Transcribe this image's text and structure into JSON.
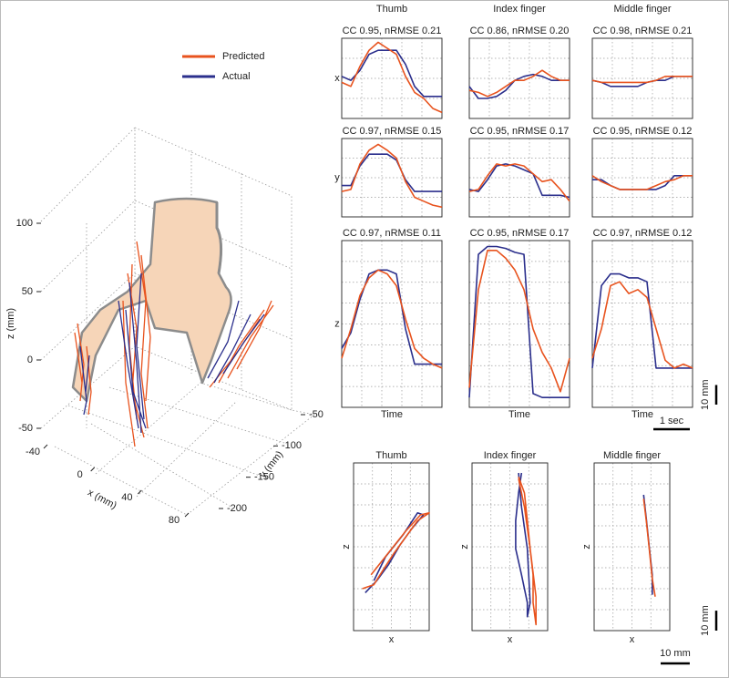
{
  "legend": {
    "items": [
      {
        "name": "Predicted",
        "color": "#e8531e"
      },
      {
        "name": "Actual",
        "color": "#2b2f8c"
      }
    ]
  },
  "plot3d": {
    "xlabel": "x (mm)",
    "ylabel": "y (mm)",
    "zlabel": "z (mm)",
    "xlim": [
      -40,
      80
    ],
    "xticks": [
      -40,
      0,
      40,
      80
    ],
    "ylim": [
      -50,
      -200
    ],
    "yticks": [
      -50,
      -100,
      -150,
      -200
    ],
    "zlim": [
      -50,
      100
    ],
    "zticks": [
      100,
      50,
      0,
      -50
    ]
  },
  "time_panels": {
    "xlabel": "Time",
    "time": [
      0,
      0.25,
      0.5,
      0.75,
      1,
      1.25,
      1.5,
      1.75,
      2,
      2.25,
      2.5,
      2.75
    ],
    "xlim": [
      0,
      2.75
    ],
    "columns": [
      "Thumb",
      "Index finger",
      "Middle finger"
    ],
    "rows": [
      {
        "label": "x",
        "ylim": [
          0,
          40
        ],
        "panels": [
          {
            "stats": "CC 0.95, nRMSE 0.21",
            "predicted": [
              18,
              16,
              26,
              34,
              38,
              35,
              32,
              21,
              13,
              10,
              5,
              3
            ],
            "actual": [
              21,
              19,
              24,
              32,
              34,
              34,
              34,
              27,
              16,
              11,
              11,
              11
            ]
          },
          {
            "stats": "CC 0.86, nRMSE 0.20",
            "predicted": [
              14,
              13,
              11,
              13,
              16,
              19,
              19,
              21,
              24,
              21,
              19,
              19
            ],
            "actual": [
              16,
              10,
              10,
              11,
              14,
              19,
              21,
              22,
              21,
              19,
              19,
              19
            ]
          },
          {
            "stats": "CC 0.98, nRMSE 0.21",
            "predicted": [
              19,
              18,
              18,
              18,
              18,
              18,
              18,
              19,
              21,
              21,
              21,
              21
            ],
            "actual": [
              19,
              18,
              16,
              16,
              16,
              16,
              18,
              19,
              19,
              21,
              21,
              21
            ]
          }
        ]
      },
      {
        "label": "y",
        "ylim": [
          0,
          40
        ],
        "panels": [
          {
            "stats": "CC 0.97, nRMSE 0.15",
            "predicted": [
              13,
              14,
              27,
              34,
              37,
              34,
              30,
              18,
              10,
              8,
              6,
              5
            ],
            "actual": [
              16,
              16,
              26,
              32,
              32,
              32,
              29,
              19,
              13,
              13,
              13,
              13
            ]
          },
          {
            "stats": "CC 0.95, nRMSE 0.17",
            "predicted": [
              13,
              14,
              21,
              27,
              26,
              27,
              26,
              22,
              18,
              19,
              14,
              8
            ],
            "actual": [
              14,
              13,
              19,
              26,
              27,
              26,
              24,
              22,
              11,
              11,
              11,
              10
            ]
          },
          {
            "stats": "CC 0.95, nRMSE 0.12",
            "predicted": [
              21,
              18,
              16,
              14,
              14,
              14,
              14,
              16,
              18,
              19,
              21,
              21
            ],
            "actual": [
              19,
              19,
              16,
              14,
              14,
              14,
              14,
              14,
              16,
              21,
              21,
              21
            ]
          }
        ]
      },
      {
        "label": "z",
        "ylim": [
          0,
          85
        ],
        "panels": [
          {
            "stats": "CC 0.97, nRMSE 0.11",
            "predicted": [
              25,
              40,
              57,
              66,
              70,
              68,
              62,
              45,
              30,
              25,
              22,
              20
            ],
            "actual": [
              30,
              38,
              55,
              68,
              70,
              70,
              68,
              40,
              22,
              22,
              22,
              22
            ]
          },
          {
            "stats": "CC 0.95, nRMSE 0.17",
            "predicted": [
              10,
              60,
              80,
              80,
              76,
              70,
              60,
              40,
              28,
              20,
              8,
              25
            ],
            "actual": [
              5,
              78,
              82,
              82,
              81,
              79,
              78,
              7,
              5,
              5,
              5,
              5
            ]
          },
          {
            "stats": "CC 0.97, nRMSE 0.12",
            "predicted": [
              25,
              40,
              62,
              64,
              58,
              60,
              56,
              40,
              24,
              20,
              22,
              20
            ],
            "actual": [
              20,
              62,
              68,
              68,
              66,
              66,
              64,
              20,
              20,
              20,
              20,
              20
            ]
          }
        ]
      }
    ]
  },
  "xz_panels": {
    "xlabel": "x",
    "zlabel": "z",
    "xlim": [
      0,
      26
    ],
    "zlim": [
      0,
      84
    ],
    "panels": [
      {
        "title": "Thumb",
        "predicted": {
          "x": [
            3,
            7,
            10,
            14,
            18,
            22,
            26,
            23,
            18,
            12,
            6
          ],
          "z": [
            21,
            23,
            30,
            39,
            47,
            55,
            59,
            58,
            50,
            39,
            28
          ]
        },
        "actual": {
          "x": [
            4,
            8,
            12,
            16,
            20,
            24,
            22,
            17,
            11,
            7
          ],
          "z": [
            19,
            25,
            33,
            43,
            51,
            58,
            59,
            48,
            37,
            25
          ]
        }
      },
      {
        "title": "Index finger",
        "predicted": {
          "x": [
            16,
            18,
            19,
            20,
            21,
            21,
            22,
            22,
            20,
            18,
            16
          ],
          "z": [
            77,
            69,
            55,
            41,
            28,
            14,
            3,
            17,
            41,
            62,
            76
          ]
        },
        "actual": {
          "x": [
            17,
            16,
            15,
            15,
            17,
            19,
            19,
            20,
            19,
            17,
            16
          ],
          "z": [
            79,
            69,
            55,
            41,
            28,
            14,
            7,
            14,
            41,
            62,
            79
          ]
        }
      },
      {
        "title": "Middle finger",
        "predicted": {
          "x": [
            17,
            18,
            19,
            20,
            21
          ],
          "z": [
            66,
            54,
            40,
            26,
            17
          ]
        },
        "actual": {
          "x": [
            17,
            18,
            19,
            20,
            20
          ],
          "z": [
            68,
            55,
            41,
            28,
            18
          ]
        }
      }
    ]
  },
  "scale_bars": {
    "time": {
      "value": 1,
      "label": "1 sec"
    },
    "position": {
      "value": 10,
      "label": "10 mm"
    },
    "xz_vertical": {
      "value": 10,
      "label": "10 mm"
    },
    "xz_horizontal": {
      "value": 10,
      "label": "10 mm"
    }
  }
}
